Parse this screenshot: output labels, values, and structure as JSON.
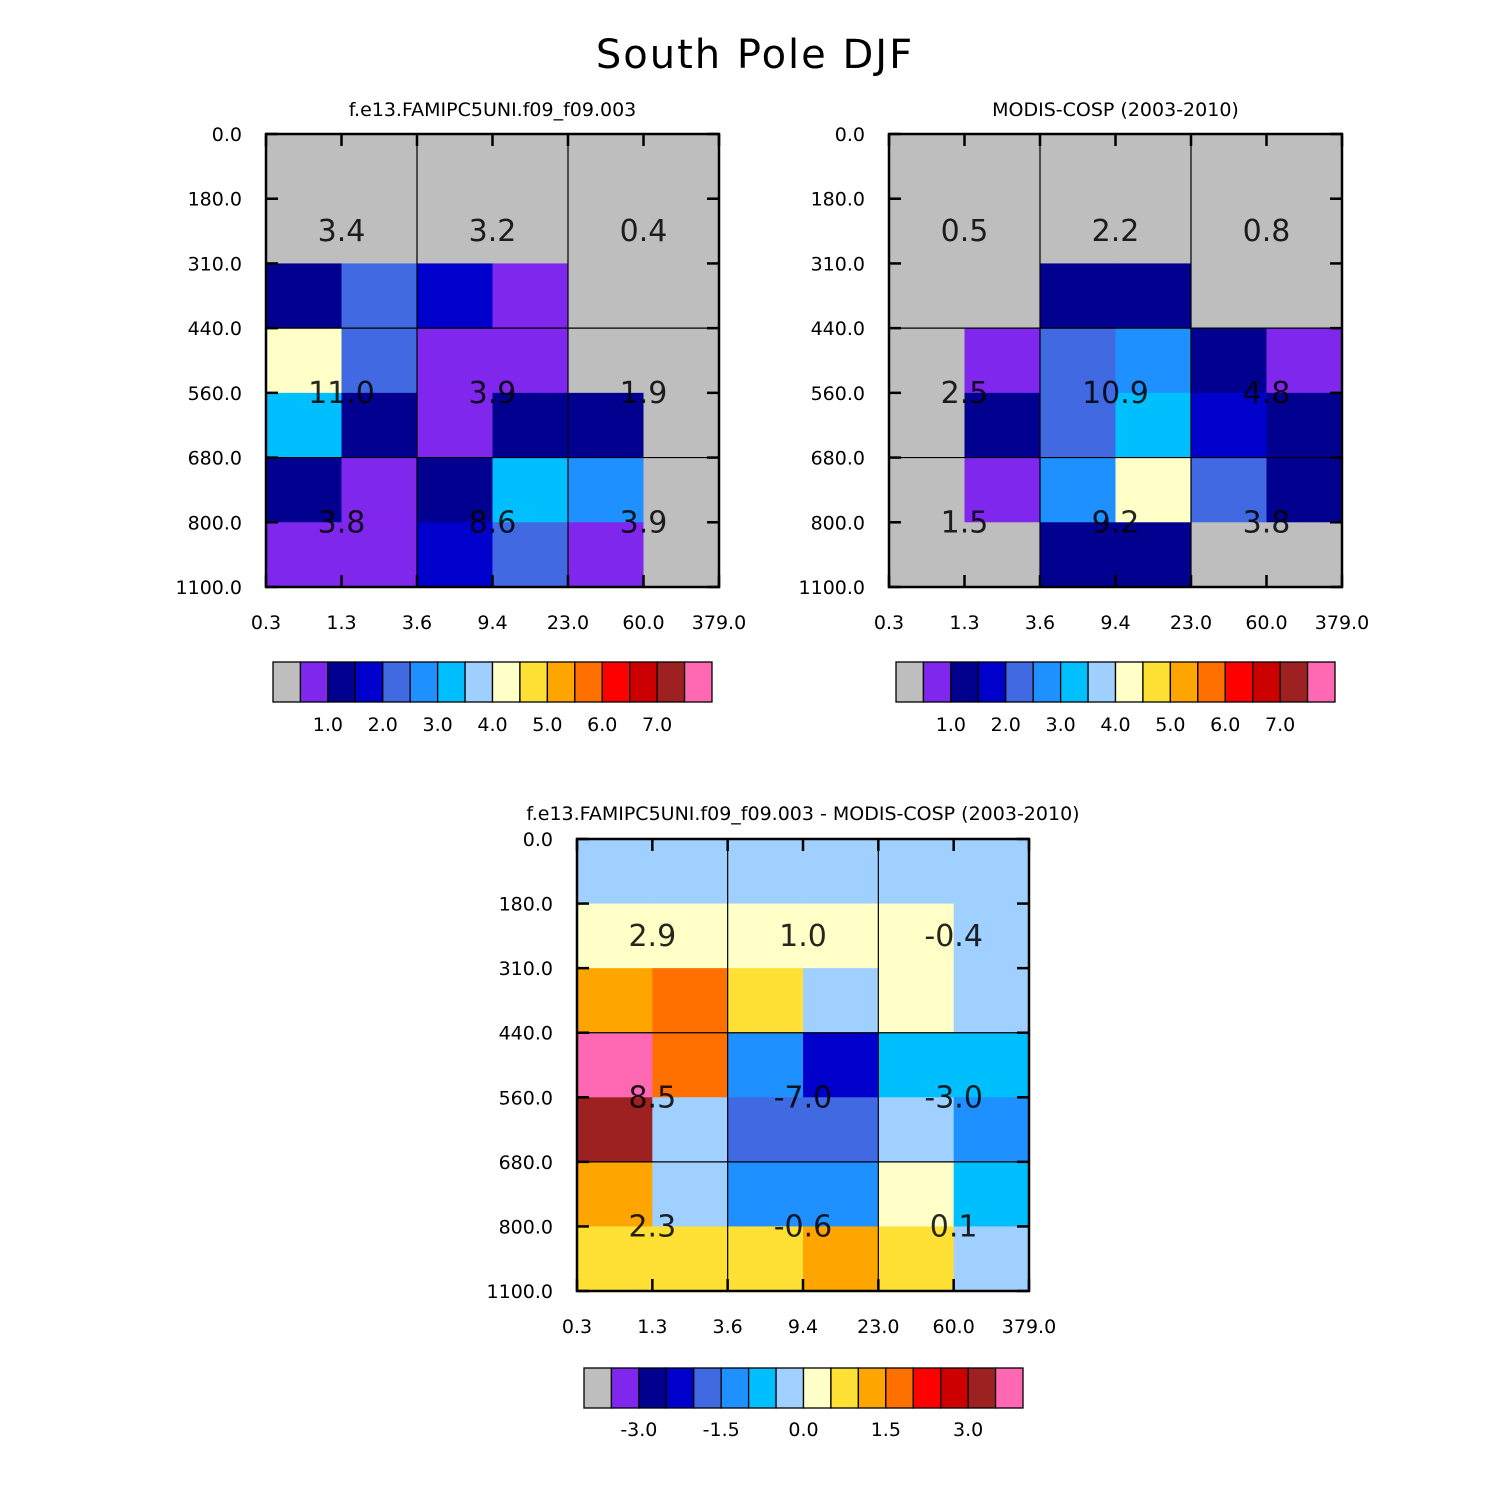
{
  "figure": {
    "title": "South Pole DJF"
  },
  "axes": {
    "x_ticks": [
      "0.3",
      "1.3",
      "3.6",
      "9.4",
      "23.0",
      "60.0",
      "379.0"
    ],
    "y_ticks": [
      "0.0",
      "180.0",
      "310.0",
      "440.0",
      "560.0",
      "680.0",
      "800.0",
      "1100.0"
    ]
  },
  "colors": {
    "grey": "#bebebe",
    "violet": "#8027ee",
    "navy": "#02008f",
    "blue": "#0000cd",
    "royal": "#4169e1",
    "dodger": "#1e90ff",
    "sky": "#00bfff",
    "pale": "#a0d0ff",
    "cream": "#ffffc8",
    "gold": "#ffe135",
    "orange": "#ffa500",
    "darkorange": "#ff7000",
    "red": "#ff0000",
    "crimson": "#cd0000",
    "brown": "#9e2121",
    "pink": "#ff69b4"
  },
  "chart_data": [
    {
      "type": "heatmap",
      "title": "f.e13.FAMIPC5UNI.f09_f09.003",
      "cells": [
        [
          "grey",
          "grey",
          "grey",
          "grey",
          "grey",
          "grey"
        ],
        [
          "grey",
          "grey",
          "grey",
          "grey",
          "grey",
          "grey"
        ],
        [
          "navy",
          "royal",
          "blue",
          "violet",
          "grey",
          "grey"
        ],
        [
          "cream",
          "royal",
          "violet",
          "violet",
          "grey",
          "grey"
        ],
        [
          "sky",
          "navy",
          "violet",
          "navy",
          "navy",
          "grey"
        ],
        [
          "navy",
          "violet",
          "navy",
          "sky",
          "dodger",
          "grey"
        ],
        [
          "violet",
          "violet",
          "blue",
          "royal",
          "violet",
          "grey"
        ]
      ],
      "box_values": [
        [
          "3.4",
          "3.2",
          "0.4"
        ],
        [
          "11.0",
          "3.9",
          "1.9"
        ],
        [
          "3.8",
          "8.6",
          "3.9"
        ]
      ],
      "colorbar": {
        "labels": [
          "1.0",
          "2.0",
          "3.0",
          "4.0",
          "5.0",
          "6.0",
          "7.0"
        ]
      }
    },
    {
      "type": "heatmap",
      "title": "MODIS-COSP (2003-2010)",
      "cells": [
        [
          "grey",
          "grey",
          "grey",
          "grey",
          "grey",
          "grey"
        ],
        [
          "grey",
          "grey",
          "grey",
          "grey",
          "grey",
          "grey"
        ],
        [
          "grey",
          "grey",
          "navy",
          "navy",
          "grey",
          "grey"
        ],
        [
          "grey",
          "violet",
          "royal",
          "dodger",
          "navy",
          "violet"
        ],
        [
          "grey",
          "navy",
          "royal",
          "sky",
          "blue",
          "navy"
        ],
        [
          "grey",
          "violet",
          "dodger",
          "cream",
          "royal",
          "navy"
        ],
        [
          "grey",
          "grey",
          "navy",
          "navy",
          "grey",
          "grey"
        ]
      ],
      "box_values": [
        [
          "0.5",
          "2.2",
          "0.8"
        ],
        [
          "2.5",
          "10.9",
          "4.8"
        ],
        [
          "1.5",
          "9.2",
          "3.8"
        ]
      ],
      "colorbar": {
        "labels": [
          "1.0",
          "2.0",
          "3.0",
          "4.0",
          "5.0",
          "6.0",
          "7.0"
        ]
      }
    },
    {
      "type": "heatmap",
      "title": "f.e13.FAMIPC5UNI.f09_f09.003 - MODIS-COSP (2003-2010)",
      "cells": [
        [
          "pale",
          "pale",
          "pale",
          "pale",
          "pale",
          "pale"
        ],
        [
          "cream",
          "cream",
          "cream",
          "cream",
          "cream",
          "pale"
        ],
        [
          "orange",
          "darkorange",
          "gold",
          "pale",
          "cream",
          "pale"
        ],
        [
          "pink",
          "darkorange",
          "dodger",
          "blue",
          "sky",
          "sky"
        ],
        [
          "brown",
          "pale",
          "royal",
          "royal",
          "pale",
          "dodger"
        ],
        [
          "orange",
          "pale",
          "dodger",
          "dodger",
          "cream",
          "sky"
        ],
        [
          "gold",
          "gold",
          "gold",
          "orange",
          "gold",
          "pale"
        ]
      ],
      "box_values": [
        [
          "2.9",
          "1.0",
          "-0.4"
        ],
        [
          "8.5",
          "-7.0",
          "-3.0"
        ],
        [
          "2.3",
          "-0.6",
          "0.1"
        ]
      ],
      "colorbar": {
        "labels": [
          "-3.0",
          "-1.5",
          "0.0",
          "1.5",
          "3.0"
        ]
      }
    }
  ]
}
